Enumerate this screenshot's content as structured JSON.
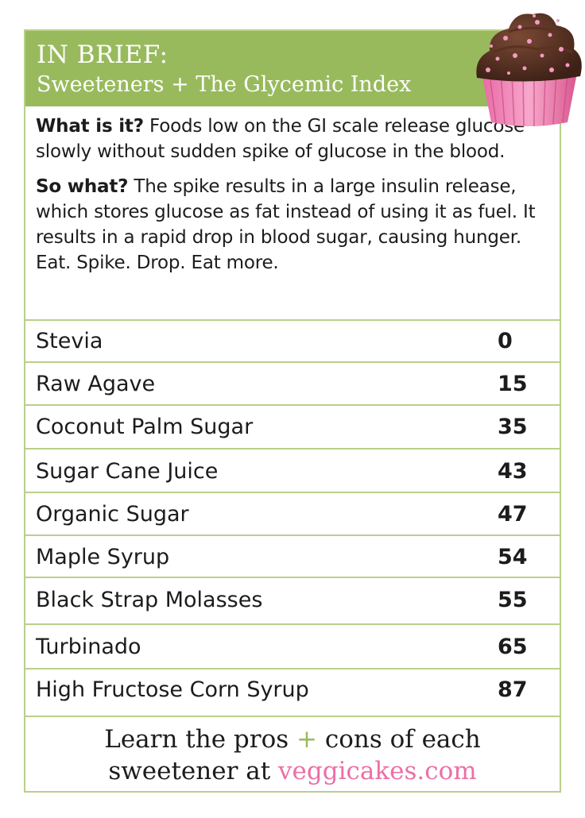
{
  "header": {
    "title": "IN BRIEF:",
    "subtitle": "Sweeteners + The Glycemic Index"
  },
  "intro": {
    "q1_label": "What is it?",
    "q1_text": " Foods low on the GI scale release glucose slowly without sudden spike of glucose in the blood.",
    "q2_label": "So what?",
    "q2_text": " The spike results in a large insulin release, which stores glucose as fat instead of using it as fuel. It results in a rapid drop in blood sugar, causing hunger. Eat. Spike. Drop. Eat more."
  },
  "sweeteners": [
    {
      "name": "Stevia",
      "gi": "0"
    },
    {
      "name": "Raw Agave",
      "gi": "15"
    },
    {
      "name": "Coconut Palm Sugar",
      "gi": "35"
    },
    {
      "name": "Sugar Cane Juice",
      "gi": "43"
    },
    {
      "name": "Organic Sugar",
      "gi": "47"
    },
    {
      "name": "Maple Syrup",
      "gi": "54"
    },
    {
      "name": "Black Strap Molasses",
      "gi": "55"
    },
    {
      "name": "Turbinado",
      "gi": "65"
    },
    {
      "name": "High Fructose Corn Syrup",
      "gi": "87"
    }
  ],
  "footer": {
    "line1_a": "Learn the pros ",
    "plus": "+",
    "line1_b": " cons of each",
    "line2_a": "sweetener at ",
    "site": "veggicakes.com"
  },
  "colors": {
    "header_green": "#98ba5d",
    "border_green": "#b9cf8c",
    "site_pink": "#ee6ea7"
  },
  "icons": {
    "cupcake": "cupcake-icon"
  }
}
